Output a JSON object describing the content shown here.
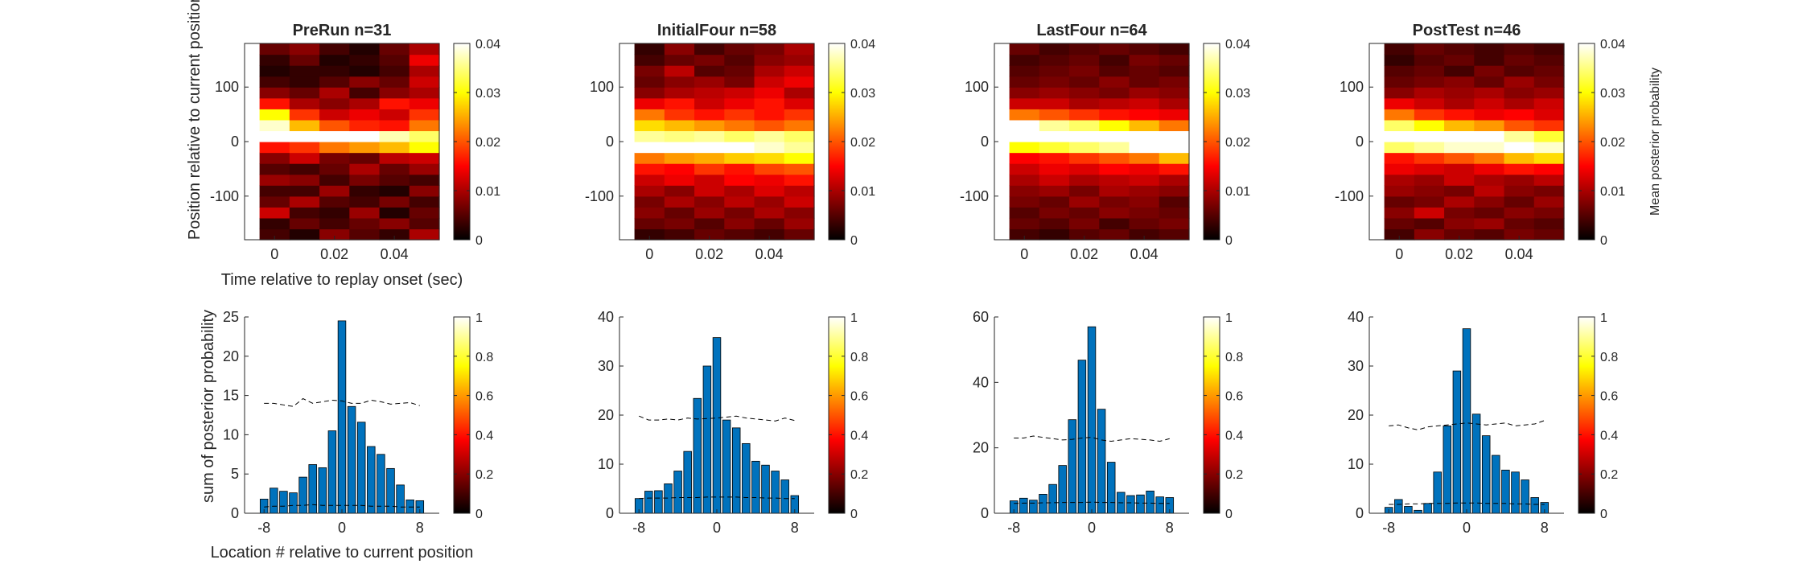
{
  "colors": {
    "bar": "#0072BD",
    "axis": "#262626",
    "dashed": "#000000"
  },
  "figure": {
    "top_ylabel": "Position relative to current position (de",
    "top_xlabel": "Time relative to replay onset (sec)",
    "bottom_ylabel": "sum of posterior probability",
    "bottom_xlabel": "Location # relative to current position",
    "colorbar_label": "Mean posterior probability",
    "heatmap_colormap": "hot",
    "colorbar_top_ticks": [
      "0",
      "0.01",
      "0.02",
      "0.03",
      "0.04"
    ],
    "colorbar_bottom_ticks": [
      "0",
      "0.2",
      "0.4",
      "0.6",
      "0.8",
      "1"
    ]
  },
  "chart_data": [
    {
      "type": "heatmap",
      "title": "PreRun n=31",
      "x_range": [
        -0.01,
        0.055
      ],
      "y_range": [
        -180,
        180
      ],
      "xticks": [
        "0",
        "0.02",
        "0.04"
      ],
      "yticks": [
        "100",
        "0",
        "-100"
      ],
      "time_bins": [
        -0.005,
        0.005,
        0.015,
        0.025,
        0.035,
        0.045
      ],
      "position_bins": [
        -180,
        -160,
        -140,
        -120,
        -100,
        -80,
        -60,
        -40,
        -20,
        0,
        20,
        40,
        60,
        80,
        100,
        120,
        140,
        160
      ],
      "values": [
        [
          0.004,
          0.002,
          0.008,
          0.005,
          0.003,
          0.01
        ],
        [
          0.003,
          0.006,
          0.004,
          0.006,
          0.008,
          0.005
        ],
        [
          0.012,
          0.004,
          0.003,
          0.009,
          0.002,
          0.006
        ],
        [
          0.006,
          0.01,
          0.005,
          0.004,
          0.007,
          0.004
        ],
        [
          0.004,
          0.004,
          0.009,
          0.003,
          0.002,
          0.008
        ],
        [
          0.009,
          0.008,
          0.004,
          0.007,
          0.005,
          0.004
        ],
        [
          0.005,
          0.004,
          0.006,
          0.01,
          0.006,
          0.009
        ],
        [
          0.008,
          0.012,
          0.007,
          0.006,
          0.011,
          0.012
        ],
        [
          0.016,
          0.018,
          0.022,
          0.024,
          0.026,
          0.03
        ],
        [
          0.045,
          0.045,
          0.043,
          0.04,
          0.037,
          0.034
        ],
        [
          0.038,
          0.026,
          0.02,
          0.017,
          0.016,
          0.022
        ],
        [
          0.03,
          0.018,
          0.012,
          0.014,
          0.012,
          0.018
        ],
        [
          0.016,
          0.01,
          0.008,
          0.01,
          0.016,
          0.014
        ],
        [
          0.008,
          0.006,
          0.01,
          0.004,
          0.008,
          0.01
        ],
        [
          0.004,
          0.003,
          0.005,
          0.008,
          0.006,
          0.012
        ],
        [
          0.002,
          0.003,
          0.003,
          0.002,
          0.004,
          0.01
        ],
        [
          0.003,
          0.006,
          0.002,
          0.003,
          0.005,
          0.014
        ],
        [
          0.006,
          0.008,
          0.004,
          0.002,
          0.006,
          0.01
        ]
      ]
    },
    {
      "type": "heatmap",
      "title": "InitialFour n=58",
      "x_range": [
        -0.01,
        0.055
      ],
      "y_range": [
        -180,
        180
      ],
      "xticks": [
        "0",
        "0.02",
        "0.04"
      ],
      "yticks": [
        "100",
        "0",
        "-100"
      ],
      "time_bins": [
        -0.005,
        0.005,
        0.015,
        0.025,
        0.035,
        0.045
      ],
      "position_bins": [
        -180,
        -160,
        -140,
        -120,
        -100,
        -80,
        -60,
        -40,
        -20,
        0,
        20,
        40,
        60,
        80,
        100,
        120,
        140,
        160
      ],
      "values": [
        [
          0.003,
          0.004,
          0.006,
          0.005,
          0.004,
          0.006
        ],
        [
          0.006,
          0.007,
          0.005,
          0.008,
          0.006,
          0.009
        ],
        [
          0.008,
          0.006,
          0.009,
          0.007,
          0.01,
          0.008
        ],
        [
          0.007,
          0.01,
          0.008,
          0.011,
          0.009,
          0.012
        ],
        [
          0.01,
          0.008,
          0.012,
          0.01,
          0.013,
          0.011
        ],
        [
          0.012,
          0.014,
          0.012,
          0.015,
          0.014,
          0.016
        ],
        [
          0.016,
          0.015,
          0.018,
          0.016,
          0.019,
          0.02
        ],
        [
          0.022,
          0.024,
          0.025,
          0.027,
          0.028,
          0.03
        ],
        [
          0.04,
          0.042,
          0.04,
          0.04,
          0.038,
          0.036
        ],
        [
          0.036,
          0.035,
          0.036,
          0.034,
          0.036,
          0.034
        ],
        [
          0.028,
          0.026,
          0.024,
          0.022,
          0.02,
          0.022
        ],
        [
          0.022,
          0.018,
          0.016,
          0.018,
          0.016,
          0.018
        ],
        [
          0.014,
          0.016,
          0.012,
          0.014,
          0.016,
          0.013
        ],
        [
          0.008,
          0.01,
          0.011,
          0.012,
          0.014,
          0.01
        ],
        [
          0.006,
          0.008,
          0.009,
          0.007,
          0.012,
          0.014
        ],
        [
          0.007,
          0.011,
          0.005,
          0.006,
          0.01,
          0.012
        ],
        [
          0.004,
          0.006,
          0.007,
          0.005,
          0.008,
          0.009
        ],
        [
          0.003,
          0.008,
          0.004,
          0.006,
          0.007,
          0.01
        ]
      ]
    },
    {
      "type": "heatmap",
      "title": "LastFour n=64",
      "x_range": [
        -0.01,
        0.055
      ],
      "y_range": [
        -180,
        180
      ],
      "xticks": [
        "0",
        "0.02",
        "0.04"
      ],
      "yticks": [
        "100",
        "0",
        "-100"
      ],
      "time_bins": [
        -0.005,
        0.005,
        0.015,
        0.025,
        0.035,
        0.045
      ],
      "position_bins": [
        -180,
        -160,
        -140,
        -120,
        -100,
        -80,
        -60,
        -40,
        -20,
        0,
        20,
        40,
        60,
        80,
        100,
        120,
        140,
        160
      ],
      "values": [
        [
          0.004,
          0.003,
          0.005,
          0.006,
          0.004,
          0.005
        ],
        [
          0.006,
          0.005,
          0.007,
          0.004,
          0.006,
          0.007
        ],
        [
          0.005,
          0.007,
          0.006,
          0.008,
          0.007,
          0.006
        ],
        [
          0.007,
          0.006,
          0.009,
          0.007,
          0.008,
          0.005
        ],
        [
          0.008,
          0.009,
          0.007,
          0.01,
          0.009,
          0.008
        ],
        [
          0.01,
          0.012,
          0.01,
          0.011,
          0.012,
          0.01
        ],
        [
          0.012,
          0.014,
          0.013,
          0.015,
          0.014,
          0.016
        ],
        [
          0.015,
          0.016,
          0.018,
          0.02,
          0.022,
          0.026
        ],
        [
          0.03,
          0.032,
          0.034,
          0.036,
          0.04,
          0.042
        ],
        [
          0.05,
          0.05,
          0.05,
          0.05,
          0.05,
          0.04
        ],
        [
          0.04,
          0.036,
          0.034,
          0.03,
          0.026,
          0.022
        ],
        [
          0.022,
          0.02,
          0.018,
          0.016,
          0.015,
          0.014
        ],
        [
          0.012,
          0.012,
          0.01,
          0.011,
          0.012,
          0.01
        ],
        [
          0.008,
          0.009,
          0.008,
          0.007,
          0.009,
          0.008
        ],
        [
          0.006,
          0.007,
          0.006,
          0.008,
          0.006,
          0.007
        ],
        [
          0.005,
          0.006,
          0.007,
          0.005,
          0.006,
          0.005
        ],
        [
          0.004,
          0.005,
          0.006,
          0.004,
          0.007,
          0.006
        ],
        [
          0.006,
          0.004,
          0.005,
          0.006,
          0.005,
          0.004
        ]
      ]
    },
    {
      "type": "heatmap",
      "title": "PostTest n=46",
      "x_range": [
        -0.01,
        0.055
      ],
      "y_range": [
        -180,
        180
      ],
      "xticks": [
        "0",
        "0.02",
        "0.04"
      ],
      "yticks": [
        "100",
        "0",
        "-100"
      ],
      "time_bins": [
        -0.005,
        0.005,
        0.015,
        0.025,
        0.035,
        0.045
      ],
      "position_bins": [
        -180,
        -160,
        -140,
        -120,
        -100,
        -80,
        -60,
        -40,
        -20,
        0,
        20,
        40,
        60,
        80,
        100,
        120,
        140,
        160
      ],
      "values": [
        [
          0.004,
          0.008,
          0.006,
          0.005,
          0.007,
          0.006
        ],
        [
          0.006,
          0.005,
          0.008,
          0.009,
          0.006,
          0.005
        ],
        [
          0.008,
          0.012,
          0.007,
          0.006,
          0.008,
          0.007
        ],
        [
          0.006,
          0.007,
          0.01,
          0.008,
          0.006,
          0.009
        ],
        [
          0.009,
          0.008,
          0.007,
          0.011,
          0.008,
          0.007
        ],
        [
          0.01,
          0.009,
          0.012,
          0.01,
          0.009,
          0.011
        ],
        [
          0.014,
          0.013,
          0.012,
          0.014,
          0.016,
          0.015
        ],
        [
          0.016,
          0.018,
          0.02,
          0.022,
          0.026,
          0.028
        ],
        [
          0.034,
          0.036,
          0.038,
          0.038,
          0.04,
          0.038
        ],
        [
          0.045,
          0.045,
          0.042,
          0.04,
          0.036,
          0.032
        ],
        [
          0.034,
          0.03,
          0.026,
          0.024,
          0.02,
          0.018
        ],
        [
          0.022,
          0.018,
          0.016,
          0.014,
          0.015,
          0.013
        ],
        [
          0.014,
          0.012,
          0.01,
          0.012,
          0.01,
          0.012
        ],
        [
          0.008,
          0.01,
          0.009,
          0.01,
          0.008,
          0.009
        ],
        [
          0.006,
          0.007,
          0.008,
          0.006,
          0.009,
          0.007
        ],
        [
          0.005,
          0.006,
          0.004,
          0.007,
          0.005,
          0.006
        ],
        [
          0.003,
          0.005,
          0.006,
          0.004,
          0.006,
          0.005
        ],
        [
          0.004,
          0.006,
          0.005,
          0.004,
          0.005,
          0.004
        ]
      ]
    },
    {
      "type": "bar",
      "x_range": [
        -10,
        10
      ],
      "ylim": [
        0,
        25
      ],
      "xticks": [
        "-8",
        "0",
        "8"
      ],
      "yticks": [
        "0",
        "5",
        "10",
        "15",
        "20",
        "25"
      ],
      "x": [
        -8,
        -7,
        -6,
        -5,
        -4,
        -3,
        -2,
        -1,
        0,
        1,
        2,
        3,
        4,
        5,
        6,
        7,
        8
      ],
      "values": [
        1.8,
        3.2,
        2.8,
        2.6,
        4.6,
        6.2,
        5.8,
        10.5,
        24.5,
        13.6,
        11.6,
        8.5,
        7.5,
        5.7,
        3.6,
        1.7,
        1.6
      ],
      "upper_dashed": [
        14.0,
        14.0,
        13.8,
        13.6,
        14.6,
        14.0,
        14.2,
        14.4,
        14.3,
        14.0,
        14.0,
        14.4,
        14.2,
        13.9,
        14.0,
        14.1,
        13.7
      ],
      "lower_dashed": [
        0.8,
        0.9,
        0.9,
        1.0,
        1.0,
        1.1,
        1.0,
        1.0,
        1.0,
        1.0,
        1.0,
        0.9,
        0.9,
        0.9,
        0.8,
        0.8,
        0.8
      ]
    },
    {
      "type": "bar",
      "x_range": [
        -10,
        10
      ],
      "ylim": [
        0,
        40
      ],
      "xticks": [
        "-8",
        "0",
        "8"
      ],
      "yticks": [
        "0",
        "10",
        "20",
        "30",
        "40"
      ],
      "x": [
        -8,
        -7,
        -6,
        -5,
        -4,
        -3,
        -2,
        -1,
        0,
        1,
        2,
        3,
        4,
        5,
        6,
        7,
        8
      ],
      "values": [
        3.0,
        4.5,
        4.6,
        6.0,
        8.6,
        12.6,
        23.4,
        30.0,
        35.8,
        19.0,
        17.4,
        14.2,
        10.6,
        9.8,
        8.6,
        6.8,
        3.6
      ],
      "upper_dashed": [
        19.8,
        19.0,
        19.0,
        19.2,
        19.0,
        19.4,
        19.2,
        19.3,
        19.4,
        19.6,
        19.8,
        19.4,
        19.2,
        19.0,
        18.8,
        19.4,
        18.9
      ],
      "lower_dashed": [
        3.0,
        3.1,
        3.1,
        3.1,
        3.2,
        3.2,
        3.2,
        3.3,
        3.3,
        3.3,
        3.3,
        3.2,
        3.2,
        3.1,
        3.1,
        3.0,
        3.0
      ]
    },
    {
      "type": "bar",
      "x_range": [
        -10,
        10
      ],
      "ylim": [
        0,
        60
      ],
      "xticks": [
        "-8",
        "0",
        "8"
      ],
      "yticks": [
        "0",
        "20",
        "40",
        "60"
      ],
      "x": [
        -8,
        -7,
        -6,
        -5,
        -4,
        -3,
        -2,
        -1,
        0,
        1,
        2,
        3,
        4,
        5,
        6,
        7,
        8
      ],
      "values": [
        3.8,
        4.6,
        4.0,
        5.8,
        8.8,
        14.6,
        28.6,
        46.8,
        57.0,
        31.8,
        15.6,
        6.4,
        5.4,
        5.6,
        6.8,
        5.0,
        4.8
      ],
      "upper_dashed": [
        23.0,
        23.0,
        23.6,
        23.2,
        22.8,
        22.4,
        22.6,
        23.0,
        23.2,
        22.4,
        22.0,
        22.4,
        22.8,
        22.6,
        22.4,
        22.0,
        22.8
      ],
      "lower_dashed": [
        3.0,
        3.1,
        3.1,
        3.2,
        3.2,
        3.3,
        3.3,
        3.3,
        3.4,
        3.3,
        3.3,
        3.2,
        3.2,
        3.1,
        3.1,
        3.0,
        3.0
      ]
    },
    {
      "type": "bar",
      "x_range": [
        -10,
        10
      ],
      "ylim": [
        0,
        40
      ],
      "xticks": [
        "-8",
        "0",
        "8"
      ],
      "yticks": [
        "0",
        "10",
        "20",
        "30",
        "40"
      ],
      "x": [
        -8,
        -7,
        -6,
        -5,
        -4,
        -3,
        -2,
        -1,
        0,
        1,
        2,
        3,
        4,
        5,
        6,
        7,
        8
      ],
      "values": [
        1.2,
        2.8,
        1.4,
        0.6,
        2.0,
        8.4,
        17.8,
        29.0,
        37.6,
        20.2,
        15.8,
        11.8,
        8.8,
        8.4,
        6.8,
        3.2,
        2.2
      ],
      "upper_dashed": [
        17.8,
        18.0,
        17.4,
        17.0,
        17.6,
        17.8,
        18.0,
        18.2,
        18.4,
        18.2,
        18.0,
        18.2,
        18.4,
        17.8,
        18.0,
        18.2,
        18.9
      ],
      "lower_dashed": [
        1.8,
        1.8,
        1.9,
        1.9,
        2.0,
        2.0,
        2.0,
        2.1,
        2.1,
        2.1,
        2.0,
        2.0,
        2.0,
        1.9,
        1.9,
        1.8,
        1.8
      ]
    }
  ]
}
